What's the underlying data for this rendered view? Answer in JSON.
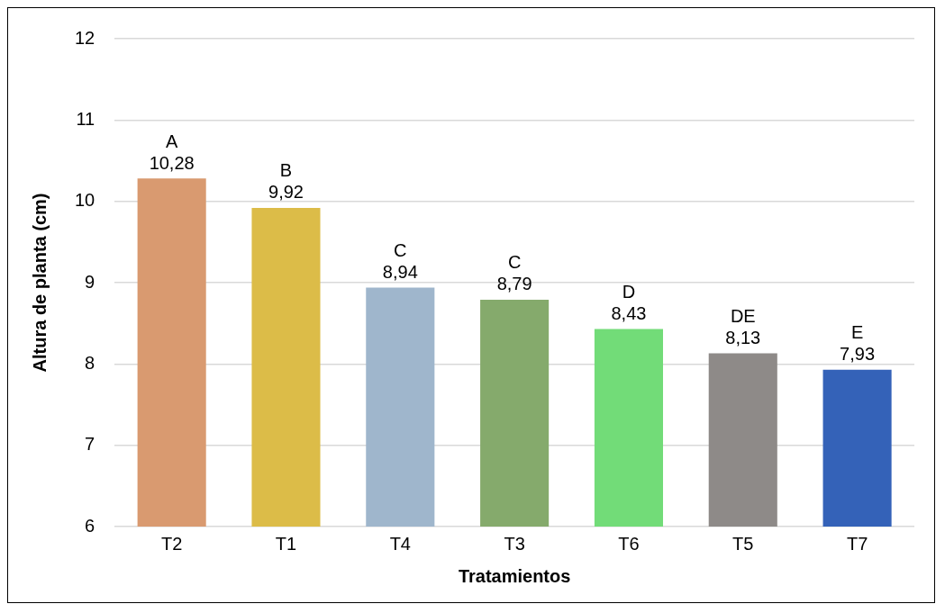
{
  "chart_data": {
    "type": "bar",
    "xlabel": "Tratamientos",
    "ylabel": "Altura de planta (cm)",
    "categories": [
      "T2",
      "T1",
      "T4",
      "T3",
      "T6",
      "T5",
      "T7"
    ],
    "values": [
      10.28,
      9.92,
      8.94,
      8.79,
      8.43,
      8.13,
      7.93
    ],
    "value_labels": [
      "10,28",
      "9,92",
      "8,94",
      "8,79",
      "8,43",
      "8,13",
      "7,93"
    ],
    "colors": [
      "#d99a70",
      "#dcbc48",
      "#9fb6cc",
      "#85aa6c",
      "#72dc78",
      "#8e8a88",
      "#3462b8"
    ],
    "ylim": [
      6,
      12
    ],
    "yticks": [
      6,
      7,
      8,
      9,
      10,
      11,
      12
    ],
    "grid": "y",
    "legend": false,
    "annotations": [
      {
        "text": "A",
        "x": "T2",
        "y": 10.28
      },
      {
        "text": "B",
        "x": "T1",
        "y": 9.92
      },
      {
        "text": "C",
        "x": "T4",
        "y": 8.94
      },
      {
        "text": "C",
        "x": "T3",
        "y": 8.79
      },
      {
        "text": "D",
        "x": "T6",
        "y": 8.43
      },
      {
        "text": "DE",
        "x": "T5",
        "y": 8.13
      },
      {
        "text": "E",
        "x": "T7",
        "y": 7.93
      }
    ]
  }
}
